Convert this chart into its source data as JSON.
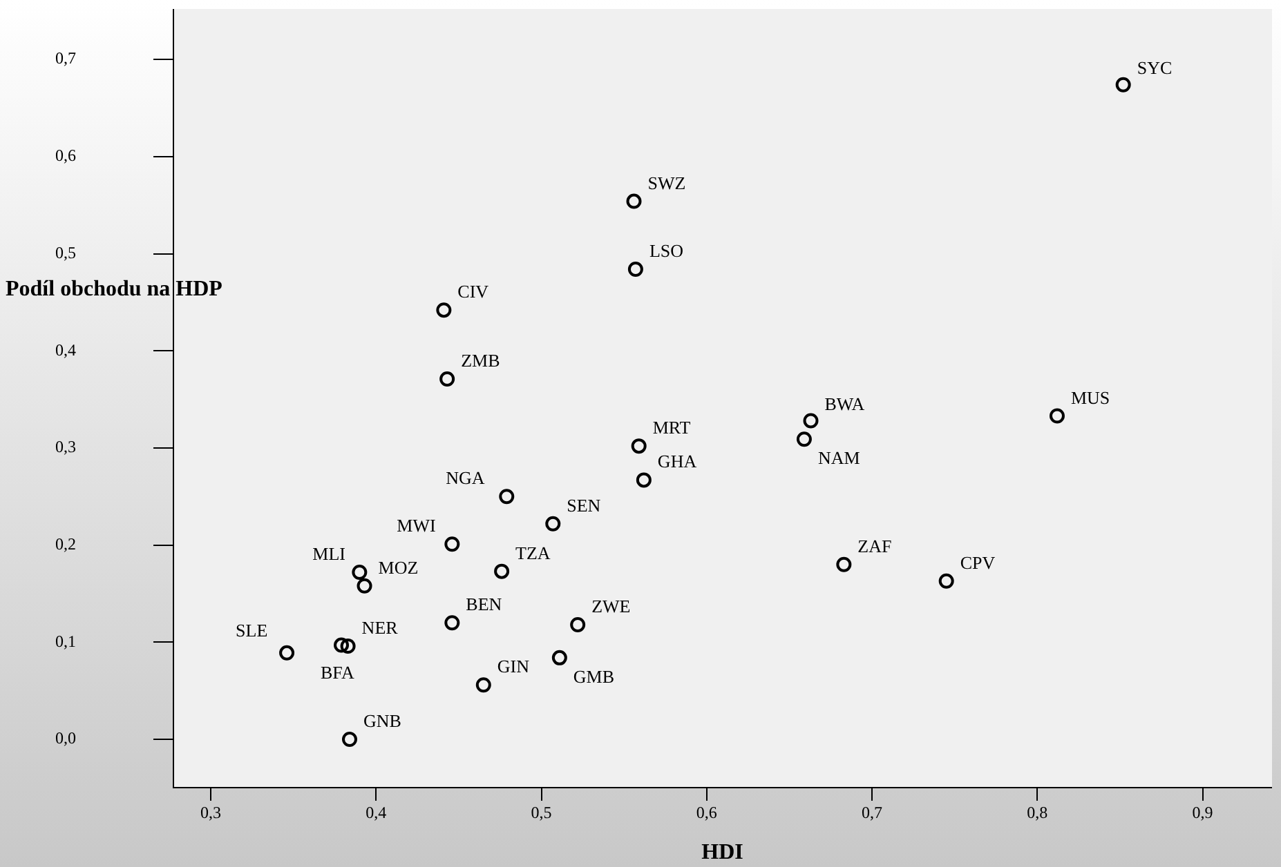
{
  "chart_data": {
    "type": "scatter",
    "xlabel": "HDI",
    "ylabel": "Podíl obchodu na HDP",
    "xlim": [
      0.277,
      0.942
    ],
    "ylim": [
      -0.049,
      0.752
    ],
    "xticks": [
      {
        "value": 0.3,
        "label": "0,3"
      },
      {
        "value": 0.4,
        "label": "0,4"
      },
      {
        "value": 0.5,
        "label": "0,5"
      },
      {
        "value": 0.6,
        "label": "0,6"
      },
      {
        "value": 0.7,
        "label": "0,7"
      },
      {
        "value": 0.8,
        "label": "0,8"
      },
      {
        "value": 0.9,
        "label": "0,9"
      }
    ],
    "yticks": [
      {
        "value": 0,
        "label": "0,0"
      },
      {
        "value": 0.1,
        "label": "0,1"
      },
      {
        "value": 0.2,
        "label": "0,2"
      },
      {
        "value": 0.3,
        "label": "0,3"
      },
      {
        "value": 0.4,
        "label": "0,4"
      },
      {
        "value": 0.5,
        "label": "0,5"
      },
      {
        "value": 0.6,
        "label": "0,6"
      },
      {
        "value": 0.7,
        "label": "0,7"
      }
    ],
    "grid": false,
    "legend": false,
    "marker": "circle",
    "series": [
      {
        "color": "#000000",
        "x": [
          0.852,
          0.556,
          0.557,
          0.441,
          0.443,
          0.559,
          0.562,
          0.663,
          0.659,
          0.812,
          0.479,
          0.507,
          0.446,
          0.476,
          0.39,
          0.393,
          0.683,
          0.745,
          0.446,
          0.522,
          0.346,
          0.383,
          0.379,
          0.511,
          0.465,
          0.384
        ],
        "values": [
          0.674,
          0.554,
          0.484,
          0.442,
          0.371,
          0.302,
          0.267,
          0.328,
          0.309,
          0.333,
          0.25,
          0.222,
          0.201,
          0.173,
          0.172,
          0.158,
          0.18,
          0.163,
          0.12,
          0.118,
          0.089,
          0.096,
          0.097,
          0.084,
          0.056,
          0.0
        ]
      }
    ],
    "annotations": [
      {
        "text": "SYC",
        "x": 0.852,
        "y": 0.674
      },
      {
        "text": "SWZ",
        "x": 0.556,
        "y": 0.554
      },
      {
        "text": "LSO",
        "x": 0.557,
        "y": 0.484
      },
      {
        "text": "CIV",
        "x": 0.441,
        "y": 0.442
      },
      {
        "text": "ZMB",
        "x": 0.443,
        "y": 0.371
      },
      {
        "text": "MRT",
        "x": 0.559,
        "y": 0.302
      },
      {
        "text": "GHA",
        "x": 0.562,
        "y": 0.267
      },
      {
        "text": "BWA",
        "x": 0.663,
        "y": 0.328
      },
      {
        "text": "NAM",
        "x": 0.659,
        "y": 0.309
      },
      {
        "text": "MUS",
        "x": 0.812,
        "y": 0.333
      },
      {
        "text": "NGA",
        "x": 0.479,
        "y": 0.25
      },
      {
        "text": "SEN",
        "x": 0.507,
        "y": 0.222
      },
      {
        "text": "MWI",
        "x": 0.446,
        "y": 0.201
      },
      {
        "text": "TZA",
        "x": 0.476,
        "y": 0.173
      },
      {
        "text": "MLI",
        "x": 0.39,
        "y": 0.172
      },
      {
        "text": "MOZ",
        "x": 0.393,
        "y": 0.158
      },
      {
        "text": "ZAF",
        "x": 0.683,
        "y": 0.18
      },
      {
        "text": "CPV",
        "x": 0.745,
        "y": 0.163
      },
      {
        "text": "BEN",
        "x": 0.446,
        "y": 0.12
      },
      {
        "text": "ZWE",
        "x": 0.522,
        "y": 0.118
      },
      {
        "text": "SLE",
        "x": 0.346,
        "y": 0.089
      },
      {
        "text": "NER",
        "x": 0.383,
        "y": 0.096
      },
      {
        "text": "BFA",
        "x": 0.379,
        "y": 0.097
      },
      {
        "text": "GMB",
        "x": 0.511,
        "y": 0.084
      },
      {
        "text": "GIN",
        "x": 0.465,
        "y": 0.056
      },
      {
        "text": "GNB",
        "x": 0.384,
        "y": 0.0
      }
    ]
  }
}
